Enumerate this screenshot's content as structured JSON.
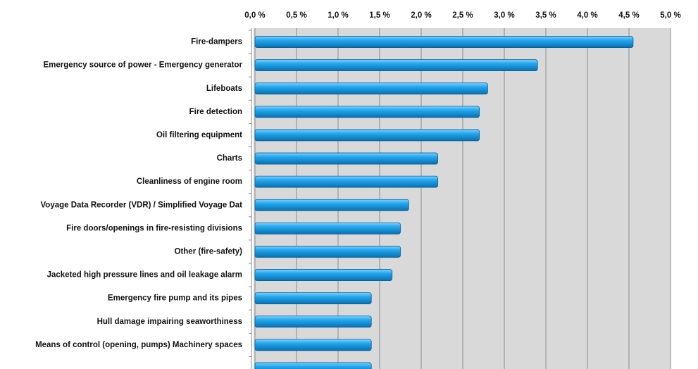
{
  "chart_data": {
    "type": "bar",
    "orientation": "horizontal",
    "categories": [
      "Fire-dampers",
      "Emergency source of power - Emergency generator",
      "Lifeboats",
      "Fire detection",
      "Oil filtering equipment",
      "Charts",
      "Cleanliness of engine room",
      "Voyage Data Recorder (VDR) / Simplified Voyage Dat",
      "Fire doors/openings in fire-resisting divisions",
      "Other (fire-safety)",
      "Jacketed high pressure lines and oil leakage alarm",
      "Emergency fire pump and its pipes",
      "Hull damage impairing seaworthiness",
      "Means of control (opening, pumps) Machinery spaces",
      null
    ],
    "values": [
      4.55,
      3.4,
      2.8,
      2.7,
      2.7,
      2.2,
      2.2,
      1.85,
      1.75,
      1.75,
      1.65,
      1.4,
      1.4,
      1.4,
      1.4
    ],
    "color": "#1fa3e8",
    "xlim": [
      0,
      5
    ],
    "xticks": [
      {
        "value": 0,
        "label": "0,0 %"
      },
      {
        "value": 0.5,
        "label": "0,5 %"
      },
      {
        "value": 1,
        "label": "1,0 %"
      },
      {
        "value": 1.5,
        "label": "1,5 %"
      },
      {
        "value": 2,
        "label": "2,0 %"
      },
      {
        "value": 2.5,
        "label": "2,5 %"
      },
      {
        "value": 3,
        "label": "3,0 %"
      },
      {
        "value": 3.5,
        "label": "3,5 %"
      },
      {
        "value": 4,
        "label": "4,0 %"
      },
      {
        "value": 4.5,
        "label": "4,5 %"
      },
      {
        "value": 5,
        "label": "5,0 %"
      }
    ],
    "grid": true
  }
}
